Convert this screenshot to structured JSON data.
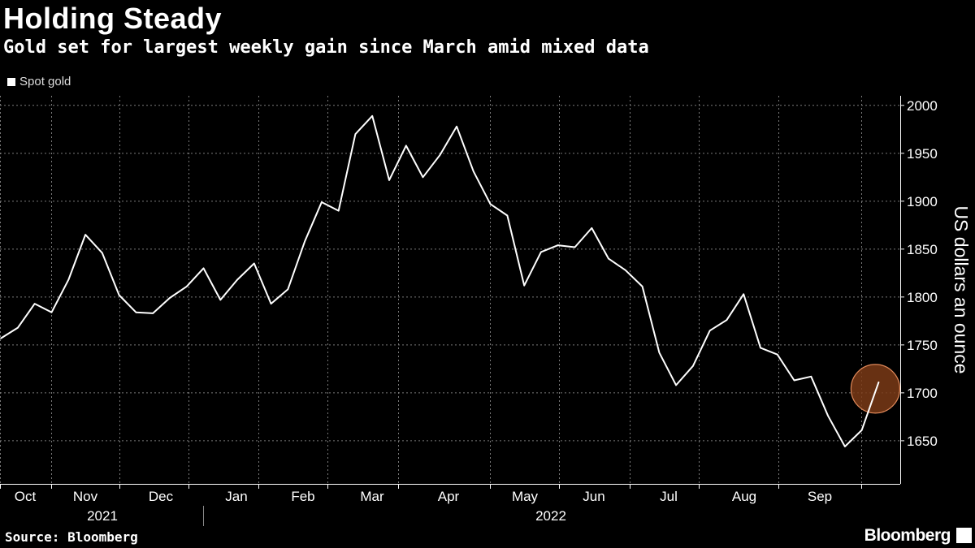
{
  "title": "Holding Steady",
  "subtitle": "Gold set for largest weekly gain since March amid mixed data",
  "source": "Source: Bloomberg",
  "brand": "Bloomberg",
  "colors": {
    "background": "#000000",
    "line": "#ffffff",
    "highlight": "#7a3a16",
    "highlight_stroke": "#e0895a",
    "grid": "#7a7a7a"
  },
  "chart_data": {
    "type": "line",
    "title": "Holding Steady",
    "subtitle": "Gold set for largest weekly gain since March amid mixed data",
    "ylabel": "US dollars an ounce",
    "xlabel": "",
    "ylim": [
      1605,
      2010
    ],
    "yticks": [
      1650,
      1700,
      1750,
      1800,
      1850,
      1900,
      1950,
      2000
    ],
    "grid": true,
    "legend_position": "top-left",
    "months": [
      "Oct",
      "Nov",
      "Dec",
      "Jan",
      "Feb",
      "Mar",
      "Apr",
      "May",
      "Jun",
      "Jul",
      "Aug",
      "Sep"
    ],
    "years": [
      "2021",
      "2022"
    ],
    "series": [
      {
        "name": "Spot gold",
        "x": [
          0,
          1,
          2,
          3,
          4,
          5,
          6,
          7,
          8,
          9,
          10,
          11,
          12,
          13,
          14,
          15,
          16,
          17,
          18,
          19,
          20,
          21,
          22,
          23,
          24,
          25,
          26,
          27,
          28,
          29,
          30,
          31,
          32,
          33,
          34,
          35,
          36,
          37,
          38,
          39,
          40,
          41,
          42,
          43,
          44,
          45,
          46,
          47,
          48,
          49,
          50,
          51,
          52
        ],
        "values": [
          1757,
          1768,
          1793,
          1784,
          1818,
          1865,
          1846,
          1802,
          1784,
          1783,
          1799,
          1811,
          1830,
          1797,
          1818,
          1835,
          1793,
          1808,
          1858,
          1899,
          1890,
          1970,
          1989,
          1922,
          1958,
          1925,
          1948,
          1978,
          1931,
          1897,
          1885,
          1812,
          1847,
          1854,
          1852,
          1872,
          1840,
          1828,
          1811,
          1742,
          1708,
          1728,
          1765,
          1776,
          1803,
          1747,
          1740,
          1713,
          1717,
          1676,
          1644,
          1661,
          1711
        ]
      }
    ],
    "annotations": [
      {
        "type": "circle",
        "series_index": 0,
        "point_index": 52
      }
    ]
  }
}
